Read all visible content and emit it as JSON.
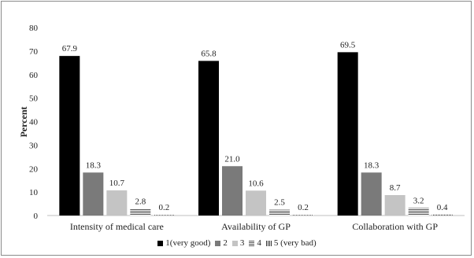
{
  "chart_data": {
    "type": "bar",
    "title": "",
    "ylabel": "Percent",
    "xlabel": "",
    "ylim": [
      0,
      80
    ],
    "yticks": [
      0,
      10,
      20,
      30,
      40,
      50,
      60,
      70,
      80
    ],
    "grid": false,
    "legend_position": "bottom",
    "categories": [
      "Intensity of medical care",
      "Availability of GP",
      "Collaboration with GP"
    ],
    "series": [
      {
        "name": "1(very good)",
        "color": "#000000",
        "values": [
          67.9,
          65.8,
          69.5
        ],
        "labels": [
          "67.9",
          "65.8",
          "69.5"
        ]
      },
      {
        "name": "2",
        "color": "#7a7a7a",
        "values": [
          18.3,
          21.0,
          18.3
        ],
        "labels": [
          "18.3",
          "21.0",
          "18.3"
        ]
      },
      {
        "name": "3",
        "color": "#c4c4c4",
        "values": [
          10.7,
          10.6,
          8.7
        ],
        "labels": [
          "10.7",
          "10.6",
          "8.7"
        ]
      },
      {
        "name": "4",
        "color": "#8c8c8c",
        "pattern": "hlines",
        "values": [
          2.8,
          2.5,
          3.2
        ],
        "labels": [
          "2.8",
          "2.5",
          "3.2"
        ]
      },
      {
        "name": "5 (very bad)",
        "color": "#555555",
        "pattern": "vlines",
        "values": [
          0.2,
          0.2,
          0.4
        ],
        "labels": [
          "0.2",
          "0.2",
          "0.4"
        ]
      }
    ]
  }
}
